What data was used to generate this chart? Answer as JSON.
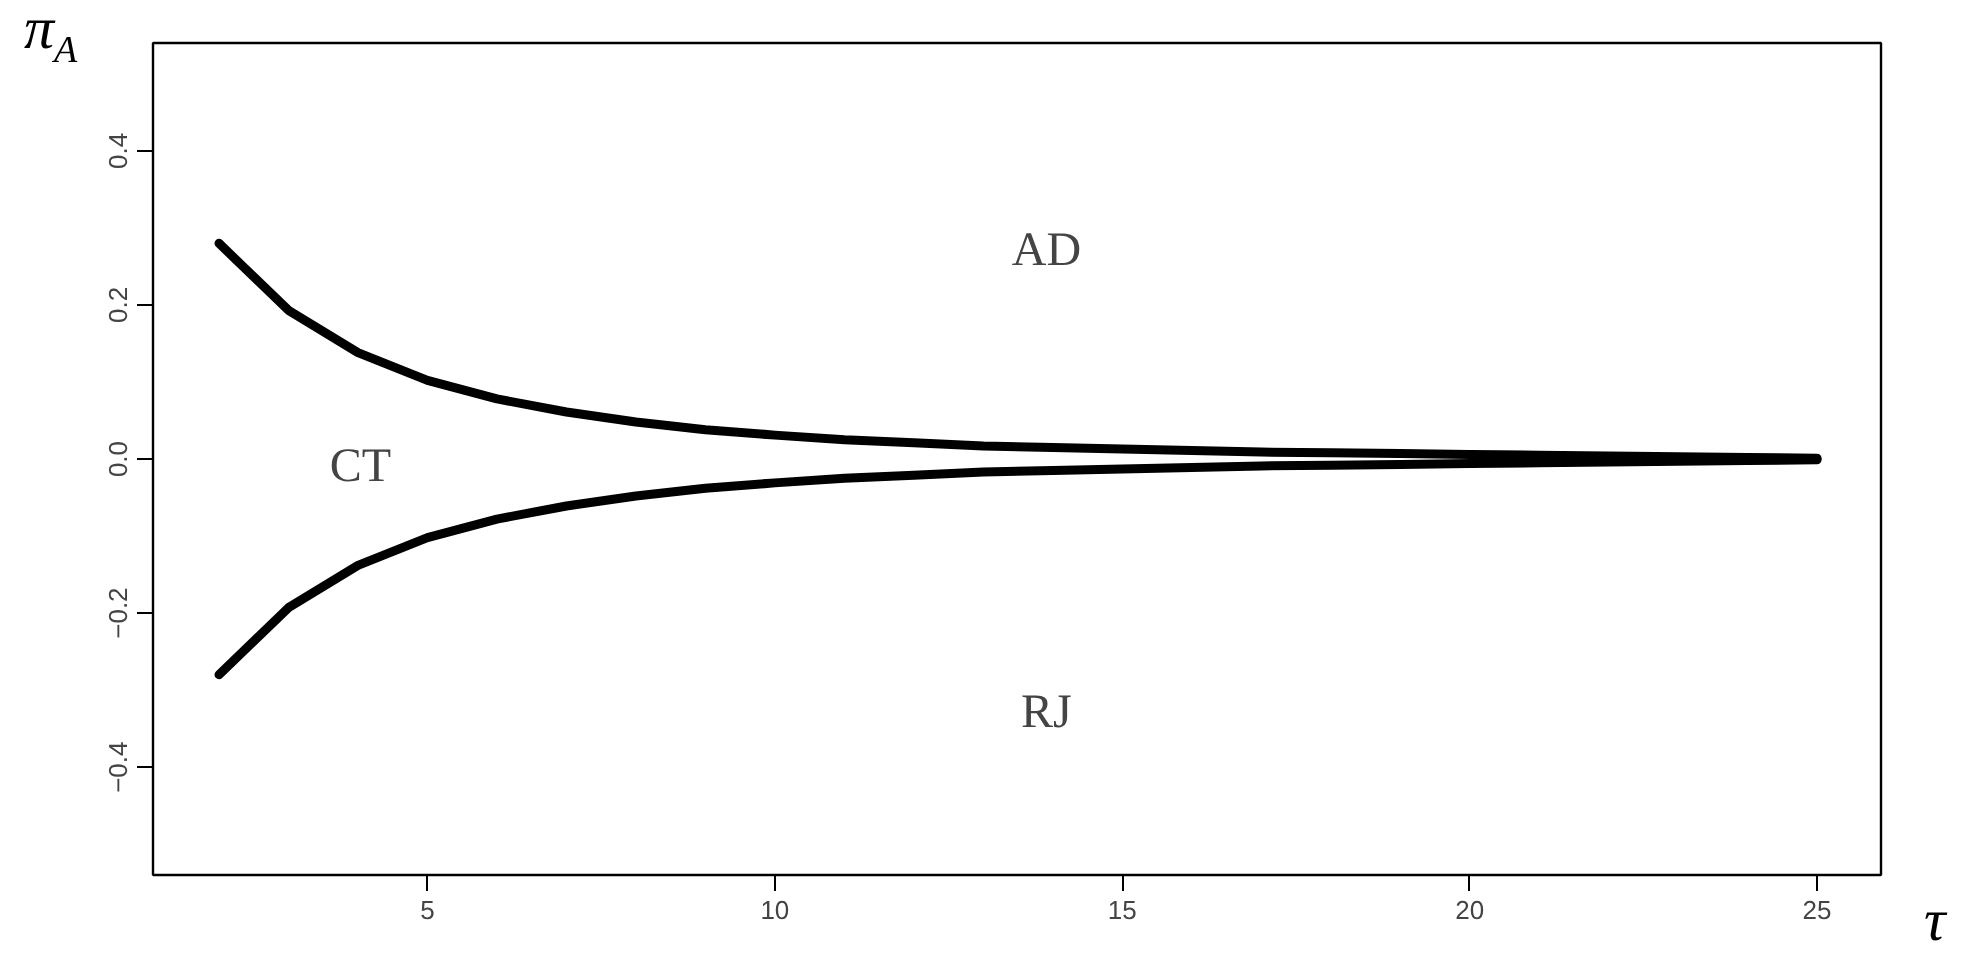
{
  "chart_data": {
    "type": "line",
    "xlabel": "τ",
    "ylabel": "π$_{A}$",
    "x": [
      2,
      3,
      4,
      5,
      6,
      7,
      8,
      9,
      10,
      11,
      12,
      13,
      14,
      15,
      16,
      17,
      18,
      19,
      20,
      21,
      22,
      23,
      24,
      25
    ],
    "series": [
      {
        "color": "#000000",
        "values": [
          0.28,
          0.193,
          0.138,
          0.102,
          0.078,
          0.061,
          0.048,
          0.038,
          0.031,
          0.025,
          0.021,
          0.017,
          0.015,
          0.013,
          0.011,
          0.009,
          0.008,
          0.007,
          0.006,
          0.005,
          0.004,
          0.003,
          0.002,
          0.001
        ]
      },
      {
        "color": "#000000",
        "values": [
          -0.28,
          -0.193,
          -0.138,
          -0.102,
          -0.078,
          -0.061,
          -0.048,
          -0.038,
          -0.031,
          -0.025,
          -0.021,
          -0.017,
          -0.015,
          -0.013,
          -0.011,
          -0.009,
          -0.008,
          -0.007,
          -0.006,
          -0.005,
          -0.004,
          -0.003,
          -0.002,
          -0.001
        ]
      }
    ],
    "annotations": [
      "AD",
      "CT",
      "RJ"
    ],
    "xlim": [
      1.05,
      25.92
    ],
    "ylim": [
      -0.54,
      0.54
    ],
    "xticks": [
      5,
      10,
      15,
      20,
      25
    ],
    "yticks": [
      {
        "value": -0.4,
        "label": "−0.4"
      },
      {
        "value": -0.2,
        "label": "−0.2"
      },
      {
        "value": 0.0,
        "label": "0.0"
      },
      {
        "value": 0.2,
        "label": "0.2"
      },
      {
        "value": 0.4,
        "label": "0.4"
      }
    ],
    "grid": false,
    "marker": "none",
    "line_style": "solid"
  }
}
